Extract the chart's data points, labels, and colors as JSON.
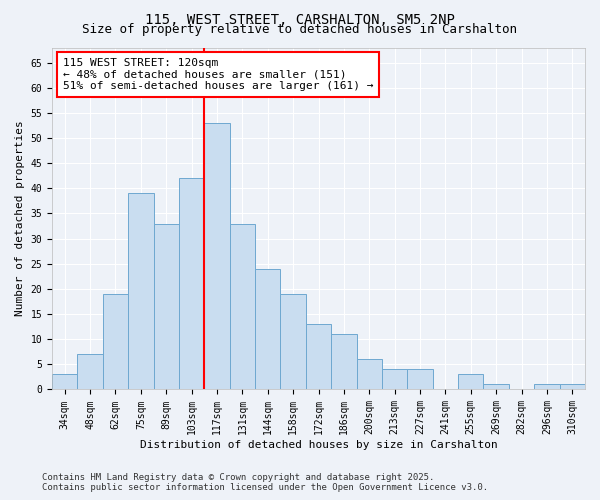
{
  "title1": "115, WEST STREET, CARSHALTON, SM5 2NP",
  "title2": "Size of property relative to detached houses in Carshalton",
  "xlabel": "Distribution of detached houses by size in Carshalton",
  "ylabel": "Number of detached properties",
  "categories": [
    "34sqm",
    "48sqm",
    "62sqm",
    "75sqm",
    "89sqm",
    "103sqm",
    "117sqm",
    "131sqm",
    "144sqm",
    "158sqm",
    "172sqm",
    "186sqm",
    "200sqm",
    "213sqm",
    "227sqm",
    "241sqm",
    "255sqm",
    "269sqm",
    "282sqm",
    "296sqm",
    "310sqm"
  ],
  "values": [
    3,
    7,
    19,
    39,
    33,
    42,
    53,
    33,
    24,
    19,
    13,
    11,
    6,
    4,
    4,
    0,
    3,
    1,
    0,
    1,
    1
  ],
  "bar_color": "#c9ddf0",
  "bar_edge_color": "#6ea8d0",
  "property_bin_index": 6,
  "annotation_line1": "115 WEST STREET: 120sqm",
  "annotation_line2": "← 48% of detached houses are smaller (151)",
  "annotation_line3": "51% of semi-detached houses are larger (161) →",
  "annotation_box_color": "white",
  "annotation_box_edge_color": "red",
  "ylim": [
    0,
    68
  ],
  "yticks": [
    0,
    5,
    10,
    15,
    20,
    25,
    30,
    35,
    40,
    45,
    50,
    55,
    60,
    65
  ],
  "footer_text": "Contains HM Land Registry data © Crown copyright and database right 2025.\nContains public sector information licensed under the Open Government Licence v3.0.",
  "bg_color": "#eef2f8",
  "grid_color": "white",
  "title_fontsize": 10,
  "subtitle_fontsize": 9,
  "axis_label_fontsize": 8,
  "tick_fontsize": 7,
  "annotation_fontsize": 8,
  "footer_fontsize": 6.5
}
